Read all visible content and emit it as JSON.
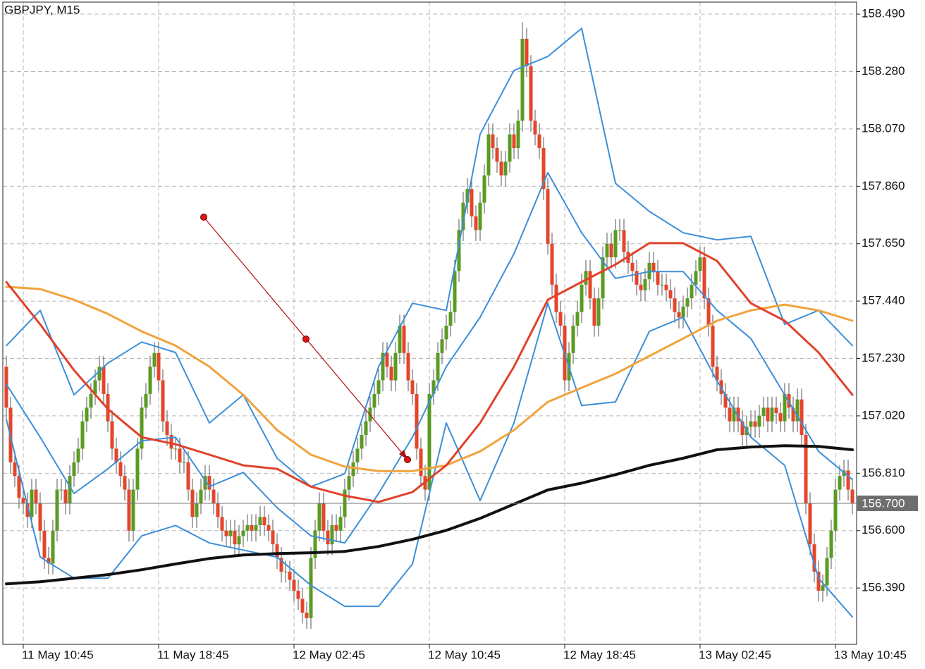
{
  "chart_data": {
    "type": "candlestick",
    "title": "GBPJPY, M15",
    "up_color": "#5a9b22",
    "down_color": "#e4452b",
    "xlim": [
      -0.83,
      201
    ],
    "xticks": [
      {
        "value": 4,
        "label": "11 May 10:45"
      },
      {
        "value": 36,
        "label": "11 May 18:45"
      },
      {
        "value": 68,
        "label": "12 May 02:45"
      },
      {
        "value": 100,
        "label": "12 May 10:45"
      },
      {
        "value": 132,
        "label": "12 May 18:45"
      },
      {
        "value": 164,
        "label": "13 May 02:45"
      },
      {
        "value": 196,
        "label": "13 May 10:45"
      }
    ],
    "ylim": [
      156.184,
      158.534
    ],
    "yticks": [
      {
        "value": 156.39,
        "label": "156.390"
      },
      {
        "value": 156.6,
        "label": "156.600"
      },
      {
        "value": 156.81,
        "label": "156.810"
      },
      {
        "value": 157.02,
        "label": "157.020"
      },
      {
        "value": 157.23,
        "label": "157.230"
      },
      {
        "value": 157.44,
        "label": "157.440"
      },
      {
        "value": 157.65,
        "label": "157.650"
      },
      {
        "value": 157.86,
        "label": "157.860"
      },
      {
        "value": 158.07,
        "label": "158.070"
      },
      {
        "value": 158.28,
        "label": "158.280"
      },
      {
        "value": 158.49,
        "label": "158.490"
      }
    ],
    "grid": true,
    "price_line": {
      "value": 156.7,
      "label": "156.700"
    },
    "candles": {
      "open": [
        157.2,
        157.05,
        156.85,
        156.8,
        156.72,
        156.7,
        156.65,
        156.75,
        156.7,
        156.6,
        156.5,
        156.48,
        156.6,
        156.75,
        156.75,
        156.7,
        156.8,
        156.85,
        156.9,
        157.0,
        157.05,
        157.1,
        157.15,
        157.2,
        157.1,
        157.0,
        156.9,
        156.85,
        156.8,
        156.75,
        156.6,
        156.75,
        156.9,
        157.05,
        157.1,
        157.2,
        157.25,
        157.15,
        157.0,
        156.95,
        156.9,
        156.9,
        156.85,
        156.85,
        156.75,
        156.65,
        156.7,
        156.75,
        156.8,
        156.75,
        156.7,
        156.65,
        156.6,
        156.58,
        156.6,
        156.55,
        156.58,
        156.6,
        156.62,
        156.6,
        156.62,
        156.65,
        156.62,
        156.6,
        156.55,
        156.5,
        156.45,
        156.45,
        156.42,
        156.38,
        156.35,
        156.3,
        156.28,
        156.5,
        156.6,
        156.7,
        156.6,
        156.55,
        156.62,
        156.6,
        156.65,
        156.75,
        156.8,
        156.85,
        156.9,
        156.95,
        157.0,
        157.05,
        157.1,
        157.15,
        157.25,
        157.2,
        157.15,
        157.25,
        157.35,
        157.25,
        157.15,
        157.1,
        156.9,
        156.8,
        156.75,
        157.1,
        157.15,
        157.25,
        157.3,
        157.35,
        157.4,
        157.55,
        157.7,
        157.8,
        157.85,
        157.75,
        157.7,
        157.8,
        157.9,
        158.05,
        158.0,
        157.95,
        157.9,
        157.95,
        158.05,
        158.0,
        158.1,
        158.4,
        158.3,
        158.1,
        158.05,
        158.0,
        157.85,
        157.65,
        157.5,
        157.4,
        157.35,
        157.15,
        157.25,
        157.35,
        157.4,
        157.5,
        157.55,
        157.45,
        157.35,
        157.45,
        157.6,
        157.65,
        157.6,
        157.7,
        157.7,
        157.62,
        157.58,
        157.55,
        157.5,
        157.48,
        157.52,
        157.58,
        157.55,
        157.5,
        157.5,
        157.48,
        157.45,
        157.4,
        157.38,
        157.42,
        157.45,
        157.5,
        157.55,
        157.6,
        157.45,
        157.35,
        157.2,
        157.15,
        157.1,
        157.05,
        157.0,
        157.05,
        157.0,
        156.95,
        156.98,
        157.0,
        156.98,
        157.02,
        157.05,
        157.0,
        157.05,
        157.03,
        157.0,
        157.1,
        157.05,
        157.0,
        157.08,
        156.95,
        156.7,
        156.55,
        156.45,
        156.38,
        156.4,
        156.5,
        156.6,
        156.75,
        156.8,
        156.82,
        156.75
      ],
      "high": [
        157.24,
        157.09,
        156.89,
        156.84,
        156.76,
        156.74,
        156.79,
        156.79,
        156.74,
        156.64,
        156.54,
        156.64,
        156.79,
        156.79,
        156.79,
        156.84,
        156.89,
        156.94,
        157.04,
        157.09,
        157.14,
        157.19,
        157.24,
        157.24,
        157.14,
        157.04,
        156.94,
        156.89,
        156.84,
        156.79,
        156.79,
        156.94,
        157.09,
        157.14,
        157.24,
        157.29,
        157.29,
        157.19,
        157.04,
        156.99,
        156.94,
        156.94,
        156.89,
        156.89,
        156.79,
        156.74,
        156.79,
        156.84,
        156.84,
        156.79,
        156.74,
        156.69,
        156.64,
        156.64,
        156.64,
        156.62,
        156.64,
        156.66,
        156.66,
        156.66,
        156.69,
        156.69,
        156.66,
        156.64,
        156.59,
        156.54,
        156.49,
        156.49,
        156.46,
        156.42,
        156.39,
        156.34,
        156.54,
        156.64,
        156.74,
        156.74,
        156.64,
        156.66,
        156.66,
        156.69,
        156.79,
        156.84,
        156.89,
        156.94,
        156.99,
        157.04,
        157.09,
        157.14,
        157.19,
        157.29,
        157.29,
        157.24,
        157.29,
        157.39,
        157.39,
        157.29,
        157.19,
        157.14,
        156.94,
        156.84,
        157.14,
        157.19,
        157.29,
        157.34,
        157.39,
        157.44,
        157.59,
        157.74,
        157.84,
        157.89,
        157.89,
        157.79,
        157.84,
        157.94,
        158.09,
        158.09,
        158.04,
        157.99,
        157.99,
        158.09,
        158.09,
        158.14,
        158.46,
        158.44,
        158.34,
        158.14,
        158.09,
        158.04,
        157.89,
        157.69,
        157.54,
        157.44,
        157.39,
        157.29,
        157.39,
        157.44,
        157.54,
        157.59,
        157.59,
        157.49,
        157.49,
        157.64,
        157.69,
        157.69,
        157.74,
        157.74,
        157.74,
        157.66,
        157.62,
        157.59,
        157.54,
        157.56,
        157.62,
        157.62,
        157.59,
        157.54,
        157.54,
        157.52,
        157.49,
        157.44,
        157.46,
        157.49,
        157.54,
        157.59,
        157.64,
        157.64,
        157.49,
        157.39,
        157.24,
        157.19,
        157.14,
        157.09,
        157.09,
        157.09,
        157.04,
        157.02,
        157.04,
        157.04,
        157.06,
        157.09,
        157.09,
        157.09,
        157.09,
        157.07,
        157.14,
        157.14,
        157.09,
        157.12,
        157.12,
        156.99,
        156.74,
        156.59,
        156.49,
        156.44,
        156.54,
        156.64,
        156.79,
        156.84,
        156.86,
        156.86,
        156.79
      ],
      "low": [
        157.01,
        156.81,
        156.76,
        156.68,
        156.66,
        156.61,
        156.61,
        156.66,
        156.56,
        156.46,
        156.44,
        156.44,
        156.56,
        156.71,
        156.66,
        156.66,
        156.76,
        156.81,
        156.86,
        156.96,
        157.01,
        157.06,
        157.11,
        157.06,
        156.96,
        156.86,
        156.81,
        156.76,
        156.71,
        156.56,
        156.56,
        156.71,
        156.86,
        157.01,
        157.06,
        157.16,
        157.11,
        156.96,
        156.91,
        156.86,
        156.86,
        156.81,
        156.81,
        156.71,
        156.61,
        156.61,
        156.66,
        156.71,
        156.71,
        156.66,
        156.61,
        156.56,
        156.54,
        156.54,
        156.51,
        156.51,
        156.54,
        156.56,
        156.56,
        156.56,
        156.58,
        156.58,
        156.56,
        156.51,
        156.46,
        156.41,
        156.41,
        156.38,
        156.34,
        156.31,
        156.26,
        156.24,
        156.24,
        156.46,
        156.56,
        156.56,
        156.51,
        156.51,
        156.56,
        156.56,
        156.61,
        156.71,
        156.76,
        156.81,
        156.86,
        156.91,
        156.96,
        157.01,
        157.06,
        157.11,
        157.16,
        157.11,
        157.11,
        157.21,
        157.21,
        157.11,
        157.06,
        156.86,
        156.76,
        156.71,
        156.71,
        157.06,
        157.11,
        157.21,
        157.26,
        157.31,
        157.36,
        157.51,
        157.66,
        157.76,
        157.71,
        157.66,
        157.66,
        157.76,
        157.86,
        157.96,
        157.91,
        157.86,
        157.86,
        157.91,
        157.96,
        157.96,
        158.06,
        158.26,
        158.06,
        158.01,
        157.96,
        157.81,
        157.61,
        157.46,
        157.36,
        157.31,
        157.11,
        157.11,
        157.21,
        157.31,
        157.36,
        157.46,
        157.41,
        157.31,
        157.31,
        157.41,
        157.56,
        157.56,
        157.56,
        157.66,
        157.58,
        157.54,
        157.51,
        157.46,
        157.44,
        157.44,
        157.48,
        157.51,
        157.46,
        157.46,
        157.44,
        157.41,
        157.36,
        157.34,
        157.34,
        157.38,
        157.41,
        157.46,
        157.51,
        157.41,
        157.31,
        157.16,
        157.11,
        157.06,
        157.01,
        156.96,
        156.96,
        156.96,
        156.91,
        156.91,
        156.94,
        156.94,
        156.94,
        156.98,
        156.96,
        156.96,
        156.99,
        156.96,
        156.96,
        157.01,
        156.96,
        156.96,
        156.91,
        156.66,
        156.51,
        156.41,
        156.34,
        156.34,
        156.36,
        156.46,
        156.56,
        156.71,
        156.76,
        156.71,
        156.66
      ],
      "close": [
        157.05,
        156.85,
        156.8,
        156.72,
        156.7,
        156.65,
        156.75,
        156.7,
        156.6,
        156.5,
        156.48,
        156.6,
        156.75,
        156.75,
        156.7,
        156.8,
        156.85,
        156.9,
        157.0,
        157.05,
        157.1,
        157.15,
        157.2,
        157.1,
        157.0,
        156.9,
        156.85,
        156.8,
        156.75,
        156.6,
        156.75,
        156.9,
        157.05,
        157.1,
        157.2,
        157.25,
        157.15,
        157.0,
        156.95,
        156.9,
        156.9,
        156.85,
        156.85,
        156.75,
        156.65,
        156.7,
        156.75,
        156.8,
        156.75,
        156.7,
        156.65,
        156.6,
        156.58,
        156.6,
        156.55,
        156.58,
        156.6,
        156.62,
        156.6,
        156.62,
        156.65,
        156.62,
        156.6,
        156.55,
        156.5,
        156.45,
        156.45,
        156.42,
        156.38,
        156.35,
        156.3,
        156.28,
        156.5,
        156.6,
        156.7,
        156.6,
        156.55,
        156.62,
        156.6,
        156.65,
        156.75,
        156.8,
        156.85,
        156.9,
        156.95,
        157.0,
        157.05,
        157.1,
        157.15,
        157.25,
        157.2,
        157.15,
        157.25,
        157.35,
        157.25,
        157.15,
        157.1,
        156.9,
        156.8,
        156.75,
        157.1,
        157.15,
        157.25,
        157.3,
        157.35,
        157.4,
        157.55,
        157.7,
        157.8,
        157.85,
        157.75,
        157.7,
        157.8,
        157.9,
        158.05,
        158.0,
        157.95,
        157.9,
        157.95,
        158.05,
        158.0,
        158.1,
        158.4,
        158.3,
        158.1,
        158.05,
        158.0,
        157.85,
        157.65,
        157.5,
        157.4,
        157.35,
        157.15,
        157.25,
        157.35,
        157.4,
        157.5,
        157.55,
        157.45,
        157.35,
        157.45,
        157.6,
        157.65,
        157.6,
        157.7,
        157.7,
        157.62,
        157.58,
        157.55,
        157.5,
        157.48,
        157.52,
        157.58,
        157.55,
        157.5,
        157.5,
        157.48,
        157.45,
        157.4,
        157.38,
        157.42,
        157.45,
        157.5,
        157.55,
        157.6,
        157.45,
        157.35,
        157.2,
        157.15,
        157.1,
        157.05,
        157.0,
        157.05,
        157.0,
        156.95,
        156.98,
        157.0,
        156.98,
        157.02,
        157.05,
        157.0,
        157.05,
        157.03,
        157.0,
        157.1,
        157.05,
        157.0,
        157.08,
        156.95,
        156.7,
        156.55,
        156.45,
        156.38,
        156.4,
        156.5,
        156.6,
        156.75,
        156.8,
        156.82,
        156.75,
        156.7
      ]
    },
    "overlay_x": [
      0,
      8,
      16,
      24,
      32,
      40,
      48,
      56,
      64,
      72,
      80,
      88,
      96,
      104,
      112,
      120,
      128,
      136,
      144,
      152,
      160,
      168,
      176,
      184,
      192,
      200
    ],
    "overlays": [
      {
        "color": "#3d8fd8",
        "width": 2,
        "values": [
          157.277,
          157.406,
          157.097,
          157.213,
          157.29,
          157.252,
          156.994,
          157.097,
          156.865,
          156.761,
          156.808,
          157.2,
          157.432,
          157.406,
          158.051,
          158.284,
          158.335,
          158.438,
          157.871,
          157.768,
          157.69,
          157.664,
          157.677,
          157.355,
          157.406,
          157.277
        ]
      },
      {
        "color": "#3d8fd8",
        "width": 2,
        "values": [
          157.136,
          156.942,
          156.736,
          156.826,
          156.929,
          156.942,
          156.761,
          156.813,
          156.684,
          156.581,
          156.555,
          156.736,
          156.942,
          157.2,
          157.381,
          157.613,
          157.91,
          157.69,
          157.523,
          157.548,
          157.548,
          157.406,
          157.303,
          157.097,
          156.89,
          156.787
        ]
      },
      {
        "color": "#3d8fd8",
        "width": 2,
        "values": [
          157.007,
          156.503,
          156.426,
          156.426,
          156.581,
          156.619,
          156.555,
          156.529,
          156.503,
          156.4,
          156.323,
          156.323,
          156.478,
          156.994,
          156.71,
          156.994,
          157.432,
          157.058,
          157.071,
          157.329,
          157.381,
          157.148,
          156.942,
          156.839,
          156.426,
          156.284
        ]
      },
      {
        "color": "#f0a33c",
        "width": 3,
        "values": [
          157.492,
          157.484,
          157.445,
          157.393,
          157.329,
          157.277,
          157.2,
          157.097,
          156.968,
          156.878,
          156.834,
          156.818,
          156.818,
          156.839,
          156.89,
          156.968,
          157.071,
          157.123,
          157.174,
          157.239,
          157.303,
          157.368,
          157.406,
          157.427,
          157.406,
          157.368
        ]
      },
      {
        "color": "#e0422b",
        "width": 3,
        "values": [
          157.51,
          157.355,
          157.187,
          157.045,
          156.942,
          156.916,
          156.878,
          156.839,
          156.826,
          156.761,
          156.728,
          156.705,
          156.741,
          156.839,
          156.994,
          157.2,
          157.445,
          157.51,
          157.574,
          157.652,
          157.652,
          157.587,
          157.432,
          157.368,
          157.252,
          157.097
        ]
      },
      {
        "color": "#111111",
        "width": 4,
        "values": [
          156.405,
          156.413,
          156.426,
          156.439,
          156.457,
          156.478,
          156.498,
          156.511,
          156.516,
          156.519,
          156.524,
          156.542,
          156.568,
          156.601,
          156.645,
          156.697,
          156.749,
          156.774,
          156.805,
          156.839,
          156.865,
          156.896,
          156.906,
          156.911,
          156.908,
          156.896
        ]
      }
    ]
  }
}
